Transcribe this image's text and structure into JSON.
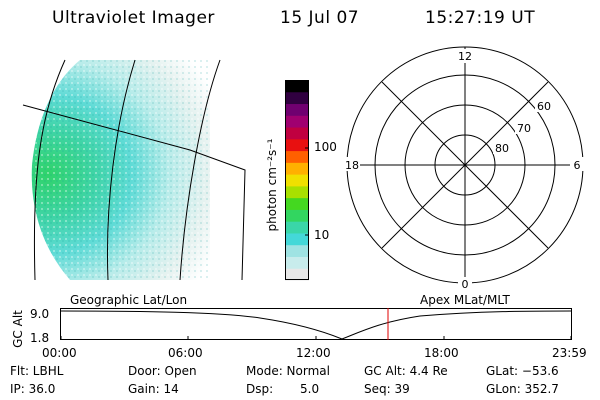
{
  "header": {
    "title": "Ultraviolet Imager",
    "date": "15 Jul 07",
    "time": "15:27:19 UT"
  },
  "colorbar": {
    "unit_label": "photon cm⁻²s⁻¹",
    "ticks": [
      "100",
      "10"
    ],
    "colors": [
      "#e8e8e8",
      "#c8ecec",
      "#9fe3e3",
      "#44d8d8",
      "#3ad6a8",
      "#32d660",
      "#44d820",
      "#a8e000",
      "#f0e000",
      "#ffb000",
      "#ff6000",
      "#e81010",
      "#c00040",
      "#a00070",
      "#700070",
      "#300040",
      "#000000"
    ]
  },
  "polar": {
    "mlt_labels": {
      "top": "12",
      "right": "6",
      "bottom": "0",
      "left": "18"
    },
    "lat_labels": [
      "60",
      "70",
      "80"
    ]
  },
  "timeline": {
    "left_label": "Geographic Lat/Lon",
    "right_label": "Apex MLat/MLT",
    "axis_title": "GC Alt",
    "y_ticks": [
      "9.0",
      "1.8"
    ],
    "x_ticks": [
      "00:00",
      "06:00",
      "12:00",
      "18:00",
      "23:59"
    ],
    "marker_color": "#e00000"
  },
  "info": {
    "flt": "Flt: LBHL",
    "door": "Door: Open",
    "mode": "Mode: Normal",
    "gc_alt": "GC Alt: 4.4 Re",
    "glat": "GLat: −53.6",
    "ip": "IP: 36.0",
    "gain": "Gain: 14",
    "dsp_label": "Dsp:",
    "dsp_value": "5.0",
    "seq": "Seq: 39",
    "glon": "GLon: 352.7"
  }
}
